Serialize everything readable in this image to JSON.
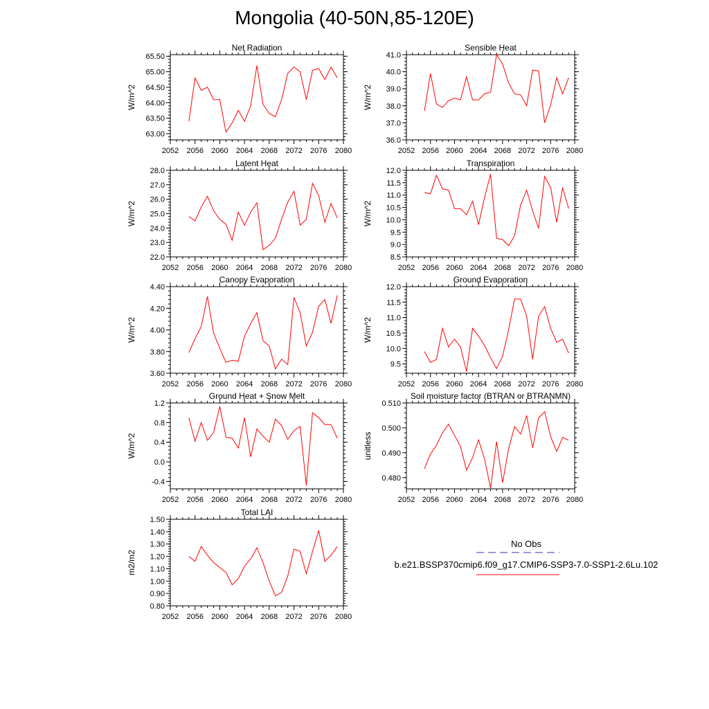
{
  "title": "Mongolia (40-50N,85-120E)",
  "colors": {
    "line": "#ff0000",
    "obs": "#3333aa",
    "axis": "#000000"
  },
  "legend": {
    "obs_label": "No Obs",
    "model_label": "b.e21.BSSP370cmip6.f09_g17.CMIP6-SSP3-7.0-SSP1-2.6Lu.102"
  },
  "chart_data": [
    {
      "type": "line",
      "title": "Net Radiation",
      "ylabel": "W/m^2",
      "xlim": [
        2052,
        2080
      ],
      "ylim": [
        62.8,
        65.55
      ],
      "xticks": [
        "2052",
        "2056",
        "2060",
        "2064",
        "2068",
        "2072",
        "2076",
        "2080"
      ],
      "yticks": [
        "63.00",
        "63.50",
        "64.00",
        "64.50",
        "65.00",
        "65.50"
      ],
      "x": [
        2055,
        2056,
        2057,
        2058,
        2059,
        2060,
        2061,
        2062,
        2063,
        2064,
        2065,
        2066,
        2067,
        2068,
        2069,
        2070,
        2071,
        2072,
        2073,
        2074,
        2075,
        2076,
        2077,
        2078,
        2079
      ],
      "values": [
        63.4,
        64.8,
        64.4,
        64.5,
        64.1,
        64.1,
        63.05,
        63.35,
        63.75,
        63.4,
        63.9,
        65.2,
        63.95,
        63.65,
        63.55,
        64.1,
        64.95,
        65.15,
        65.0,
        64.1,
        65.05,
        65.1,
        64.75,
        65.15,
        64.8
      ]
    },
    {
      "type": "line",
      "title": "Sensible Heat",
      "ylabel": "W/m^2",
      "xlim": [
        2052,
        2080
      ],
      "ylim": [
        36.0,
        41.0
      ],
      "xticks": [
        "2052",
        "2056",
        "2060",
        "2064",
        "2068",
        "2072",
        "2076",
        "2080"
      ],
      "yticks": [
        "36.0",
        "37.0",
        "38.0",
        "39.0",
        "40.0",
        "41.0"
      ],
      "x": [
        2055,
        2056,
        2057,
        2058,
        2059,
        2060,
        2061,
        2062,
        2063,
        2064,
        2065,
        2066,
        2067,
        2068,
        2069,
        2070,
        2071,
        2072,
        2073,
        2074,
        2075,
        2076,
        2077,
        2078,
        2079
      ],
      "values": [
        37.7,
        39.9,
        38.1,
        37.9,
        38.3,
        38.45,
        38.35,
        39.7,
        38.35,
        38.35,
        38.7,
        38.8,
        41.0,
        40.45,
        39.35,
        38.7,
        38.65,
        38.0,
        40.1,
        40.05,
        37.0,
        38.05,
        39.65,
        38.7,
        39.65
      ]
    },
    {
      "type": "line",
      "title": "Latent Heat",
      "ylabel": "W/m^2",
      "xlim": [
        2052,
        2080
      ],
      "ylim": [
        22.0,
        28.0
      ],
      "xticks": [
        "2052",
        "2056",
        "2060",
        "2064",
        "2068",
        "2072",
        "2076",
        "2080"
      ],
      "yticks": [
        "22.0",
        "23.0",
        "24.0",
        "25.0",
        "26.0",
        "27.0",
        "28.0"
      ],
      "x": [
        2055,
        2056,
        2057,
        2058,
        2059,
        2060,
        2061,
        2062,
        2063,
        2064,
        2065,
        2066,
        2067,
        2068,
        2069,
        2070,
        2071,
        2072,
        2073,
        2074,
        2075,
        2076,
        2077,
        2078,
        2079
      ],
      "values": [
        24.8,
        24.5,
        25.45,
        26.2,
        25.2,
        24.6,
        24.25,
        23.15,
        25.1,
        24.2,
        25.1,
        25.75,
        22.5,
        22.8,
        23.3,
        24.6,
        25.8,
        26.55,
        24.2,
        24.6,
        27.1,
        26.25,
        24.4,
        25.7,
        24.7
      ]
    },
    {
      "type": "line",
      "title": "Transpiration",
      "ylabel": "W/m^2",
      "xlim": [
        2052,
        2080
      ],
      "ylim": [
        8.5,
        12.0
      ],
      "xticks": [
        "2052",
        "2056",
        "2060",
        "2064",
        "2068",
        "2072",
        "2076",
        "2080"
      ],
      "yticks": [
        "8.5",
        "9.0",
        "9.5",
        "10.0",
        "10.5",
        "11.0",
        "11.5",
        "12.0"
      ],
      "x": [
        2055,
        2056,
        2057,
        2058,
        2059,
        2060,
        2061,
        2062,
        2063,
        2064,
        2065,
        2066,
        2067,
        2068,
        2069,
        2070,
        2071,
        2072,
        2073,
        2074,
        2075,
        2076,
        2077,
        2078,
        2079
      ],
      "values": [
        11.1,
        11.05,
        11.8,
        11.25,
        11.2,
        10.45,
        10.45,
        10.2,
        10.75,
        9.8,
        10.9,
        11.85,
        9.25,
        9.2,
        8.95,
        9.35,
        10.6,
        11.2,
        10.35,
        9.65,
        11.75,
        11.3,
        9.9,
        11.3,
        10.45
      ]
    },
    {
      "type": "line",
      "title": "Canopy Evaporation",
      "ylabel": "W/m^2",
      "xlim": [
        2052,
        2080
      ],
      "ylim": [
        3.6,
        4.4
      ],
      "xticks": [
        "2052",
        "2056",
        "2060",
        "2064",
        "2068",
        "2072",
        "2076",
        "2080"
      ],
      "yticks": [
        "3.60",
        "3.80",
        "4.00",
        "4.20",
        "4.40"
      ],
      "x": [
        2055,
        2056,
        2057,
        2058,
        2059,
        2060,
        2061,
        2062,
        2063,
        2064,
        2065,
        2066,
        2067,
        2068,
        2069,
        2070,
        2071,
        2072,
        2073,
        2074,
        2075,
        2076,
        2077,
        2078,
        2079
      ],
      "values": [
        3.79,
        3.92,
        4.03,
        4.31,
        3.97,
        3.83,
        3.7,
        3.72,
        3.71,
        3.94,
        4.06,
        4.16,
        3.9,
        3.85,
        3.64,
        3.73,
        3.68,
        4.3,
        4.16,
        3.85,
        3.98,
        4.22,
        4.28,
        4.06,
        4.32
      ]
    },
    {
      "type": "line",
      "title": "Ground Evaporation",
      "ylabel": "W/m^2",
      "xlim": [
        2052,
        2080
      ],
      "ylim": [
        9.2,
        12.0
      ],
      "xticks": [
        "2052",
        "2056",
        "2060",
        "2064",
        "2068",
        "2072",
        "2076",
        "2080"
      ],
      "yticks": [
        "9.5",
        "10.0",
        "10.5",
        "11.0",
        "11.5",
        "12.0"
      ],
      "x": [
        2055,
        2056,
        2057,
        2058,
        2059,
        2060,
        2061,
        2062,
        2063,
        2064,
        2065,
        2066,
        2067,
        2068,
        2069,
        2070,
        2071,
        2072,
        2073,
        2074,
        2075,
        2076,
        2077,
        2078,
        2079
      ],
      "values": [
        9.9,
        9.55,
        9.65,
        10.65,
        10.05,
        10.3,
        10.05,
        9.25,
        10.65,
        10.4,
        10.1,
        9.7,
        9.35,
        9.75,
        10.6,
        11.6,
        11.6,
        11.05,
        9.65,
        11.05,
        11.35,
        10.65,
        10.2,
        10.3,
        9.85
      ]
    },
    {
      "type": "line",
      "title": "Ground Heat + Snow Melt",
      "ylabel": "W/m^2",
      "xlim": [
        2052,
        2080
      ],
      "ylim": [
        -0.55,
        1.2
      ],
      "xticks": [
        "2052",
        "2056",
        "2060",
        "2064",
        "2068",
        "2072",
        "2076",
        "2080"
      ],
      "yticks": [
        "-0.4",
        "0.0",
        "0.4",
        "0.8",
        "1.2"
      ],
      "x": [
        2055,
        2056,
        2057,
        2058,
        2059,
        2060,
        2061,
        2062,
        2063,
        2064,
        2065,
        2066,
        2067,
        2068,
        2069,
        2070,
        2071,
        2072,
        2073,
        2074,
        2075,
        2076,
        2077,
        2078,
        2079
      ],
      "values": [
        0.9,
        0.42,
        0.8,
        0.44,
        0.6,
        1.13,
        0.5,
        0.48,
        0.28,
        0.9,
        0.1,
        0.67,
        0.52,
        0.4,
        0.87,
        0.74,
        0.46,
        0.64,
        0.72,
        -0.48,
        1.0,
        0.9,
        0.76,
        0.76,
        0.48
      ]
    },
    {
      "type": "line",
      "title": "Soil moisture factor (BTRAN or BTRANMN)",
      "ylabel": "unitless",
      "xlim": [
        2052,
        2080
      ],
      "ylim": [
        0.4755,
        0.51
      ],
      "xticks": [
        "2052",
        "2056",
        "2060",
        "2064",
        "2068",
        "2072",
        "2076",
        "2080"
      ],
      "yticks": [
        "0.480",
        "0.490",
        "0.500",
        "0.510"
      ],
      "x": [
        2055,
        2056,
        2057,
        2058,
        2059,
        2060,
        2061,
        2062,
        2063,
        2064,
        2065,
        2066,
        2067,
        2068,
        2069,
        2070,
        2071,
        2072,
        2073,
        2074,
        2075,
        2076,
        2077,
        2078,
        2079
      ],
      "values": [
        0.4835,
        0.4895,
        0.493,
        0.498,
        0.5015,
        0.497,
        0.4925,
        0.483,
        0.488,
        0.4952,
        0.4875,
        0.4758,
        0.4945,
        0.478,
        0.4915,
        0.5005,
        0.4975,
        0.505,
        0.492,
        0.504,
        0.5065,
        0.4965,
        0.4905,
        0.4962,
        0.495
      ]
    },
    {
      "type": "line",
      "title": "Total LAI",
      "ylabel": "m2/m2",
      "xlim": [
        2052,
        2080
      ],
      "ylim": [
        0.8,
        1.5
      ],
      "xticks": [
        "2052",
        "2056",
        "2060",
        "2064",
        "2068",
        "2072",
        "2076",
        "2080"
      ],
      "yticks": [
        "0.80",
        "0.90",
        "1.00",
        "1.10",
        "1.20",
        "1.30",
        "1.40",
        "1.50"
      ],
      "x": [
        2055,
        2056,
        2057,
        2058,
        2059,
        2060,
        2061,
        2062,
        2063,
        2064,
        2065,
        2066,
        2067,
        2068,
        2069,
        2070,
        2071,
        2072,
        2073,
        2074,
        2075,
        2076,
        2077,
        2078,
        2079
      ],
      "values": [
        1.2,
        1.16,
        1.28,
        1.21,
        1.15,
        1.11,
        1.07,
        0.97,
        1.02,
        1.12,
        1.18,
        1.27,
        1.15,
        1.0,
        0.88,
        0.91,
        1.04,
        1.26,
        1.24,
        1.06,
        1.24,
        1.41,
        1.16,
        1.21,
        1.28
      ]
    }
  ]
}
